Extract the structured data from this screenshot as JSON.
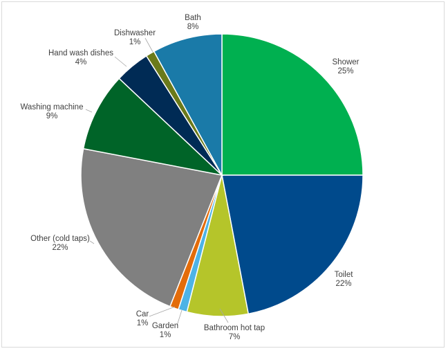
{
  "chart_data": {
    "type": "pie",
    "start_angle_deg": 0,
    "direction": "clockwise",
    "slices": [
      {
        "label": "Shower",
        "value": 25,
        "value_text": "25%",
        "color": "#00b050"
      },
      {
        "label": "Toilet",
        "value": 22,
        "value_text": "22%",
        "color": "#004a8c"
      },
      {
        "label": "Bathroom hot tap",
        "value": 7,
        "value_text": "7%",
        "color": "#b5c52a"
      },
      {
        "label": "Garden",
        "value": 1,
        "value_text": "1%",
        "color": "#4db3e6"
      },
      {
        "label": "Car",
        "value": 1,
        "value_text": "1%",
        "color": "#e36c0a"
      },
      {
        "label": "Other (cold taps)",
        "value": 22,
        "value_text": "22%",
        "color": "#808080"
      },
      {
        "label": "Washing machine",
        "value": 9,
        "value_text": "9%",
        "color": "#006428"
      },
      {
        "label": "Hand wash dishes",
        "value": 4,
        "value_text": "4%",
        "color": "#002b55"
      },
      {
        "label": "Dishwasher",
        "value": 1,
        "value_text": "1%",
        "color": "#6b7a1a"
      },
      {
        "label": "Bath",
        "value": 8,
        "value_text": "8%",
        "color": "#1a7aa8"
      }
    ]
  }
}
